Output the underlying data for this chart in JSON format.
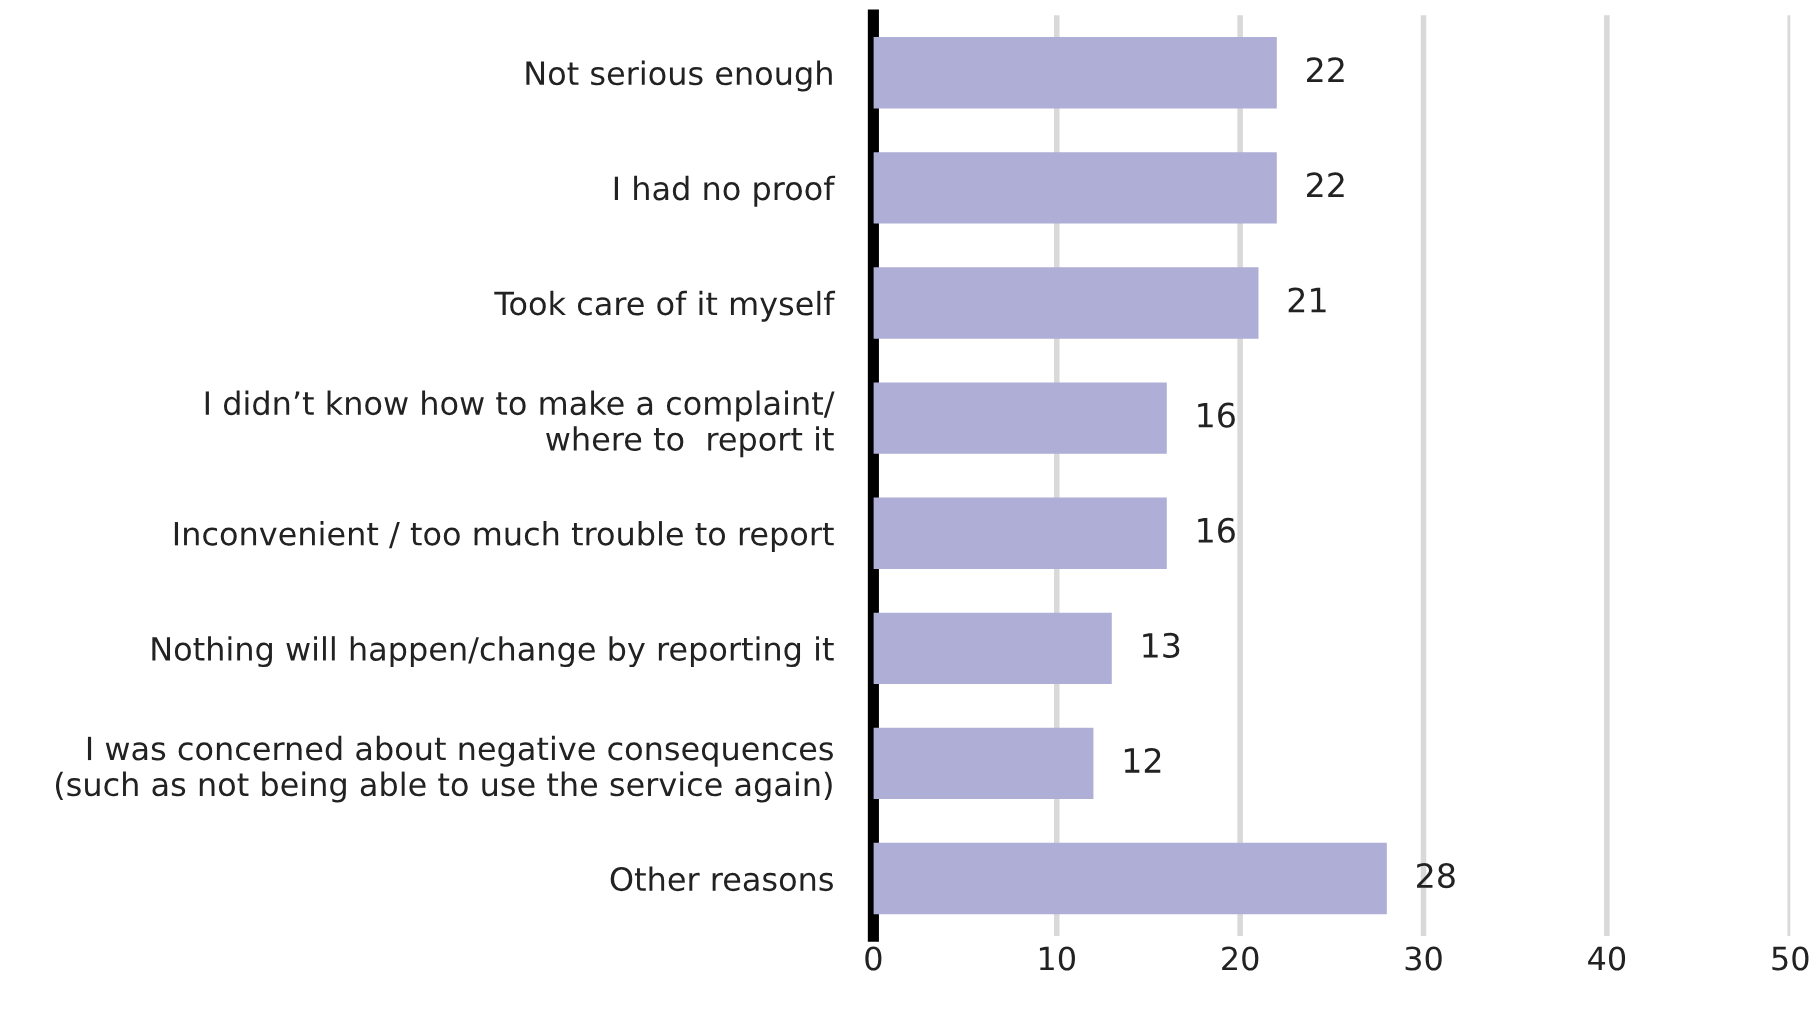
{
  "chart_data": {
    "type": "bar",
    "orientation": "horizontal",
    "categories": [
      "Not serious enough",
      "I had no proof",
      "Took care of it myself",
      "I didn’t know how to make a complaint/\nwhere to  report it",
      "Inconvenient / too much trouble to report",
      "Nothing will happen/change by reporting it",
      "I was concerned about negative consequences\n(such as not being able to use the service again)",
      "Other reasons"
    ],
    "values": [
      22,
      22,
      21,
      16,
      16,
      13,
      12,
      28
    ],
    "color": "#aeaed6",
    "xlim": [
      0,
      50
    ],
    "xticks": [
      0,
      10,
      20,
      30,
      40,
      50
    ],
    "grid": "x",
    "data_labels": true
  }
}
